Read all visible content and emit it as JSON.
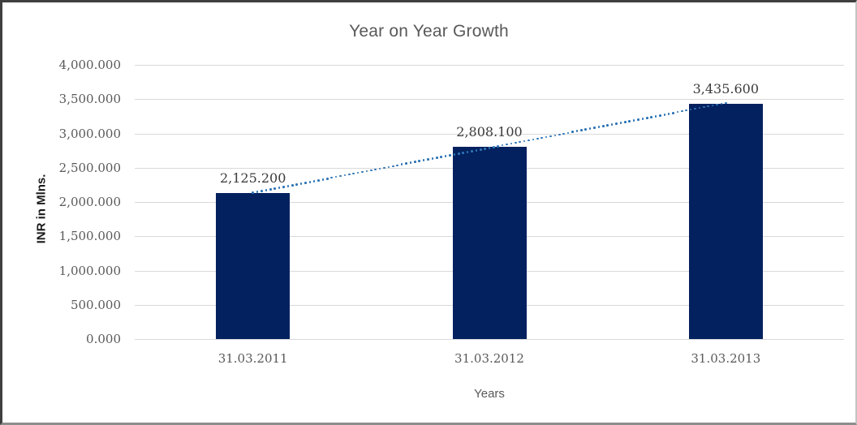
{
  "chart_data": {
    "type": "bar",
    "title": "Year on Year Growth",
    "xlabel": "Years",
    "ylabel": "INR in Mlns.",
    "categories": [
      "31.03.2011",
      "31.03.2012",
      "31.03.2013"
    ],
    "values": [
      2125.2,
      2808.1,
      3435.6
    ],
    "data_labels": [
      "2,125.200",
      "2,808.100",
      "3,435.600"
    ],
    "y_axis": {
      "ticks": [
        {
          "value": 0,
          "label": "0.000"
        },
        {
          "value": 500,
          "label": "500.000"
        },
        {
          "value": 1000,
          "label": "1,000.000"
        },
        {
          "value": 1500,
          "label": "1,500.000"
        },
        {
          "value": 2000,
          "label": "2,000.000"
        },
        {
          "value": 2500,
          "label": "2,500.000"
        },
        {
          "value": 3000,
          "label": "3,000.000"
        },
        {
          "value": 3500,
          "label": "3,500.000"
        },
        {
          "value": 4000,
          "label": "4,000.000"
        }
      ],
      "ylim": [
        0,
        4000
      ]
    },
    "grid": true,
    "legend": "none",
    "trendline": {
      "style": "dotted",
      "fit": "linear"
    },
    "colors": {
      "bar": "#03215f",
      "trendline": "#2e74b5",
      "gridline": "#d9d9d9",
      "tick_text": "#595959",
      "title_text": "#595959",
      "data_label_text": "#3b3b3b"
    }
  }
}
